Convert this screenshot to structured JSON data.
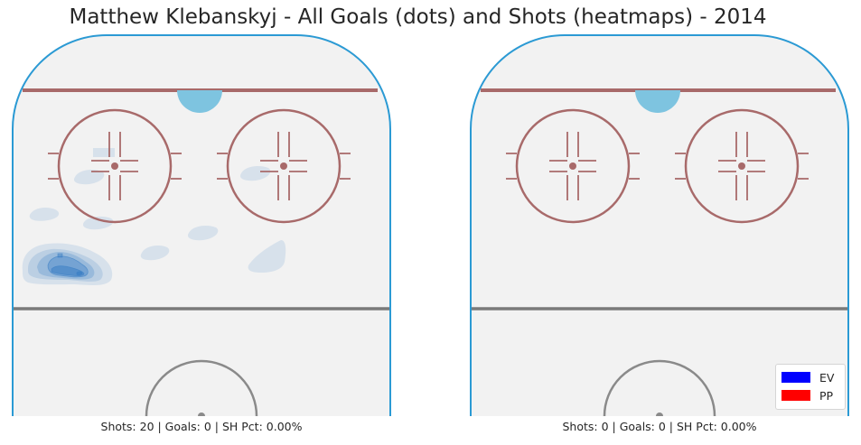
{
  "chart_data": {
    "type": "heatmap",
    "title": "Matthew Klebanskyj - All Goals (dots) and Shots (heatmaps) - 2014",
    "legend": {
      "placement": "bottom-right",
      "entries": [
        {
          "label": "EV",
          "color": "#0000ff"
        },
        {
          "label": "PP",
          "color": "#ff0000"
        }
      ]
    },
    "panels": [
      {
        "caption": "Shots: 20 | Goals: 0 | SH Pct: 0.00%",
        "shots": 20,
        "goals": 0,
        "sh_pct": "0.00%",
        "goal_points": [],
        "heatmap_color": "#3b7fc4"
      },
      {
        "caption": "Shots: 0 | Goals: 0 | SH Pct: 0.00%",
        "shots": 0,
        "goals": 0,
        "sh_pct": "0.00%",
        "goal_points": [],
        "heatmap_color": "#3b7fc4"
      }
    ],
    "colors": {
      "ice": "#f2f2f2",
      "boards": "#2b9ad4",
      "goal_line": "#a86a6a",
      "circles": "#a86a6a",
      "crease": "#7ec4e0",
      "blue_line": "#7a7a7a",
      "center_circle": "#8a8a8a"
    }
  }
}
